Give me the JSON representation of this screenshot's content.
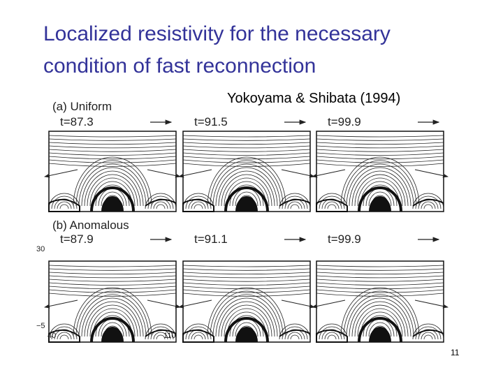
{
  "slide": {
    "title": [
      "Localized resistivity for the necessary",
      "condition of fast reconnection"
    ],
    "citation": "Yokoyama & Shibata (1994)",
    "figure": {
      "rows": [
        {
          "label": "(a) Uniform",
          "times": [
            "t=87.3",
            "t=91.5",
            "t=99.9"
          ]
        },
        {
          "label": "(b) Anomalous",
          "times": [
            "t=87.9",
            "t=91.1",
            "t=99.9"
          ]
        }
      ],
      "y_axis": [
        "30",
        "−5"
      ],
      "x_axis": [
        "40",
        "110"
      ]
    },
    "page_number": "11"
  }
}
